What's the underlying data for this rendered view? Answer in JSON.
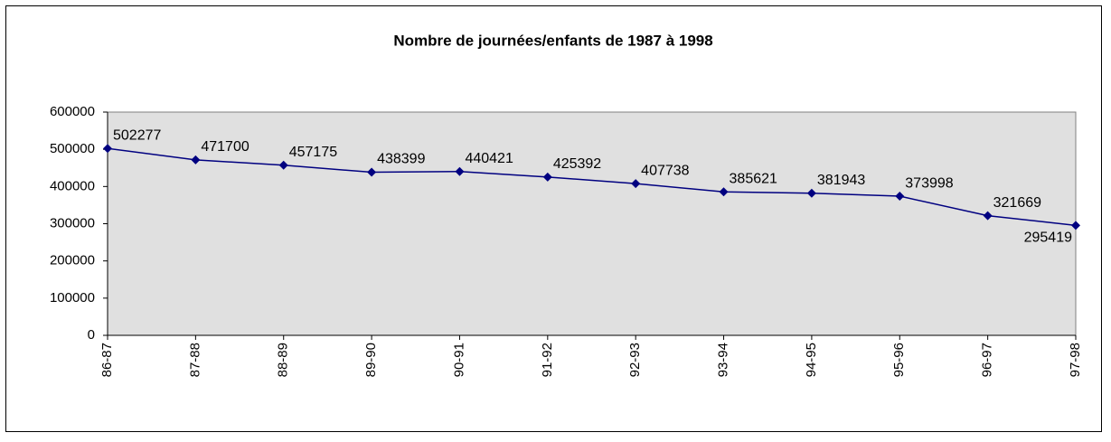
{
  "chart_data": {
    "type": "line",
    "title": "Nombre de journées/enfants de 1987 à 1998",
    "categories": [
      "86-87",
      "87-88",
      "88-89",
      "89-90",
      "90-91",
      "91-92",
      "92-93",
      "93-94",
      "94-95",
      "95-96",
      "96-97",
      "97-98"
    ],
    "values": [
      502277,
      471700,
      457175,
      438399,
      440421,
      425392,
      407738,
      385621,
      381943,
      373998,
      321669,
      295419
    ],
    "color": "#000080",
    "ylim": [
      0,
      600000
    ],
    "yticks": [
      0,
      100000,
      200000,
      300000,
      400000,
      500000,
      600000
    ],
    "grid": false
  }
}
